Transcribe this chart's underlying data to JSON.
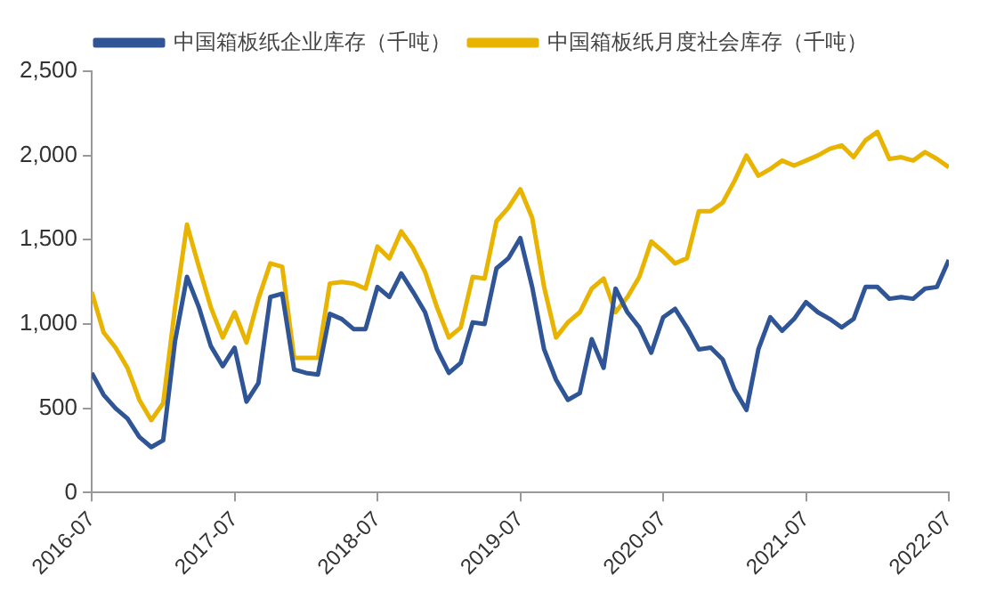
{
  "chart_data": {
    "type": "line",
    "x": [
      "2016-07",
      "2016-08",
      "2016-09",
      "2016-10",
      "2016-11",
      "2016-12",
      "2017-01",
      "2017-02",
      "2017-03",
      "2017-04",
      "2017-05",
      "2017-06",
      "2017-07",
      "2017-08",
      "2017-09",
      "2017-10",
      "2017-11",
      "2017-12",
      "2018-01",
      "2018-02",
      "2018-03",
      "2018-04",
      "2018-05",
      "2018-06",
      "2018-07",
      "2018-08",
      "2018-09",
      "2018-10",
      "2018-11",
      "2018-12",
      "2019-01",
      "2019-02",
      "2019-03",
      "2019-04",
      "2019-05",
      "2019-06",
      "2019-07",
      "2019-08",
      "2019-09",
      "2019-10",
      "2019-11",
      "2019-12",
      "2020-01",
      "2020-02",
      "2020-03",
      "2020-04",
      "2020-05",
      "2020-06",
      "2020-07",
      "2020-08",
      "2020-09",
      "2020-10",
      "2020-11",
      "2020-12",
      "2021-01",
      "2021-02",
      "2021-03",
      "2021-04",
      "2021-05",
      "2021-06",
      "2021-07",
      "2021-08",
      "2021-09",
      "2021-10",
      "2021-11",
      "2021-12",
      "2022-01",
      "2022-02",
      "2022-03",
      "2022-04",
      "2022-05",
      "2022-06",
      "2022-07"
    ],
    "series": [
      {
        "name": "中国箱板纸企业库存（千吨）",
        "color": "#2f5597",
        "values": [
          710,
          580,
          500,
          440,
          330,
          270,
          310,
          900,
          1280,
          1100,
          870,
          750,
          860,
          540,
          650,
          1160,
          1180,
          730,
          710,
          700,
          1060,
          1030,
          970,
          970,
          1220,
          1160,
          1300,
          1190,
          1070,
          850,
          710,
          770,
          1010,
          1000,
          1330,
          1390,
          1510,
          1220,
          850,
          670,
          550,
          590,
          910,
          740,
          1210,
          1070,
          980,
          830,
          1040,
          1090,
          980,
          850,
          860,
          790,
          610,
          490,
          850,
          1040,
          960,
          1030,
          1130,
          1070,
          1030,
          980,
          1030,
          1220,
          1220,
          1150,
          1160,
          1150,
          1210,
          1220,
          1380
        ]
      },
      {
        "name": "中国箱板纸月度社会库存（千吨）",
        "color": "#e8b400",
        "values": [
          1190,
          950,
          860,
          740,
          550,
          430,
          530,
          1100,
          1590,
          1340,
          1100,
          920,
          1070,
          890,
          1150,
          1360,
          1340,
          800,
          800,
          800,
          1240,
          1250,
          1240,
          1210,
          1460,
          1390,
          1550,
          1450,
          1310,
          1100,
          920,
          980,
          1280,
          1270,
          1610,
          1690,
          1800,
          1630,
          1220,
          920,
          1010,
          1070,
          1210,
          1270,
          1070,
          1160,
          1280,
          1490,
          1430,
          1360,
          1390,
          1670,
          1670,
          1720,
          1850,
          2000,
          1880,
          1920,
          1970,
          1940,
          1970,
          2000,
          2040,
          2060,
          1990,
          2090,
          2140,
          1980,
          1990,
          1970,
          2020,
          1980,
          1930
        ]
      }
    ],
    "xlim": [
      "2016-07",
      "2022-07"
    ],
    "xticks": [
      "2016-07",
      "2017-07",
      "2018-07",
      "2019-07",
      "2020-07",
      "2021-07",
      "2022-07"
    ],
    "ylim": [
      0,
      2500
    ],
    "yticks": [
      0,
      500,
      {
        "value": 1000,
        "label": "1,000"
      },
      {
        "value": 1500,
        "label": "1,500"
      },
      {
        "value": 2000,
        "label": "2,000"
      },
      {
        "value": 2500,
        "label": "2,500"
      }
    ],
    "grid": false,
    "legend": "top",
    "marker": "none",
    "line_style": "solid"
  }
}
